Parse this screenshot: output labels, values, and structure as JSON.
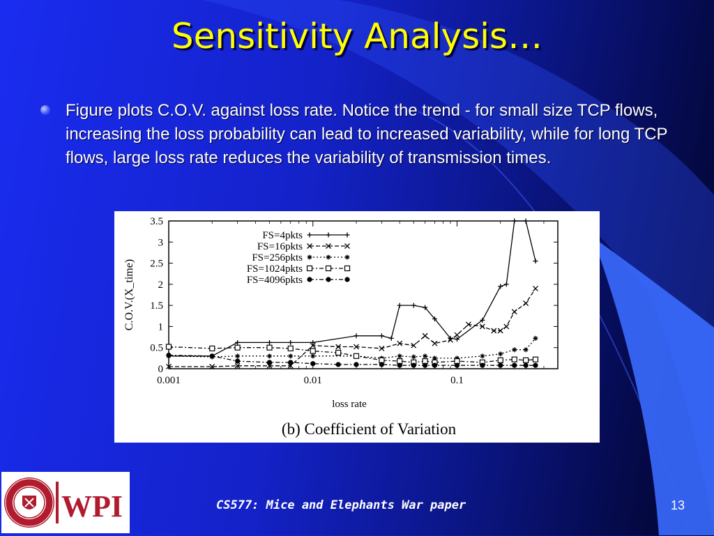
{
  "slide": {
    "title": "Sensitivity Analysis…",
    "bullet": "Figure plots C.O.V. against loss rate. Notice the trend - for small size TCP flows, increasing the loss probability can lead to increased variability, while for long TCP flows, large loss rate reduces the variability of transmission times.",
    "footer": "CS577:  Mice and Elephants War paper",
    "page_number": "13",
    "logo": {
      "seal_text": "WORCESTER POLYTECHNIC INSTITUTE",
      "seal_year": "1865",
      "wordmark": "WPI"
    }
  },
  "colors": {
    "title": "#ffff00",
    "wpi_red": "#b01c2e",
    "line": "#000000"
  },
  "chart_data": {
    "type": "line",
    "title": "",
    "caption": "(b) Coefficient of Variation",
    "xlabel": "loss rate",
    "ylabel": "C.O.V.(X_time)",
    "xscale": "log",
    "xlim": [
      0.001,
      0.5
    ],
    "ylim": [
      0,
      3.5
    ],
    "xticks": [
      0.001,
      0.01,
      0.1
    ],
    "xtick_labels": [
      "0.001",
      "0.01",
      "0.1"
    ],
    "yticks": [
      0,
      0.5,
      1,
      1.5,
      2,
      2.5,
      3,
      3.5
    ],
    "ytick_labels": [
      "0",
      "0.5",
      "1",
      "1.5",
      "2",
      "2.5",
      "3",
      "3.5"
    ],
    "legend_position": "top-center",
    "series": [
      {
        "name": "FS=4pkts",
        "marker": "plus",
        "dash": "solid",
        "points": [
          [
            0.001,
            0.3
          ],
          [
            0.002,
            0.3
          ],
          [
            0.003,
            0.62
          ],
          [
            0.005,
            0.62
          ],
          [
            0.007,
            0.62
          ],
          [
            0.01,
            0.62
          ],
          [
            0.02,
            0.78
          ],
          [
            0.03,
            0.78
          ],
          [
            0.035,
            0.72
          ],
          [
            0.04,
            1.5
          ],
          [
            0.05,
            1.5
          ],
          [
            0.06,
            1.45
          ],
          [
            0.07,
            1.18
          ],
          [
            0.09,
            0.72
          ],
          [
            0.1,
            0.7
          ],
          [
            0.15,
            1.15
          ],
          [
            0.2,
            1.95
          ],
          [
            0.22,
            2.0
          ],
          [
            0.25,
            3.5
          ],
          [
            0.3,
            3.5
          ],
          [
            0.35,
            2.55
          ]
        ]
      },
      {
        "name": "FS=16pkts",
        "marker": "cross",
        "dash": "dash",
        "points": [
          [
            0.001,
            0.05
          ],
          [
            0.002,
            0.05
          ],
          [
            0.003,
            0.07
          ],
          [
            0.005,
            0.07
          ],
          [
            0.007,
            0.07
          ],
          [
            0.01,
            0.55
          ],
          [
            0.015,
            0.52
          ],
          [
            0.02,
            0.52
          ],
          [
            0.03,
            0.48
          ],
          [
            0.04,
            0.6
          ],
          [
            0.05,
            0.55
          ],
          [
            0.06,
            0.78
          ],
          [
            0.07,
            0.6
          ],
          [
            0.09,
            0.68
          ],
          [
            0.1,
            0.8
          ],
          [
            0.12,
            1.05
          ],
          [
            0.15,
            1.0
          ],
          [
            0.18,
            0.9
          ],
          [
            0.2,
            0.9
          ],
          [
            0.22,
            1.0
          ],
          [
            0.25,
            1.35
          ],
          [
            0.3,
            1.55
          ],
          [
            0.35,
            1.9
          ]
        ]
      },
      {
        "name": "FS=256pkts",
        "marker": "star",
        "dash": "dot",
        "points": [
          [
            0.001,
            0.3
          ],
          [
            0.002,
            0.28
          ],
          [
            0.003,
            0.3
          ],
          [
            0.005,
            0.3
          ],
          [
            0.007,
            0.3
          ],
          [
            0.01,
            0.3
          ],
          [
            0.02,
            0.3
          ],
          [
            0.03,
            0.25
          ],
          [
            0.04,
            0.3
          ],
          [
            0.05,
            0.28
          ],
          [
            0.06,
            0.3
          ],
          [
            0.07,
            0.25
          ],
          [
            0.1,
            0.25
          ],
          [
            0.15,
            0.3
          ],
          [
            0.2,
            0.35
          ],
          [
            0.25,
            0.45
          ],
          [
            0.3,
            0.45
          ],
          [
            0.35,
            0.72
          ]
        ]
      },
      {
        "name": "FS=1024pkts",
        "marker": "square",
        "dash": "dashdot",
        "points": [
          [
            0.001,
            0.52
          ],
          [
            0.002,
            0.48
          ],
          [
            0.003,
            0.5
          ],
          [
            0.005,
            0.5
          ],
          [
            0.007,
            0.48
          ],
          [
            0.01,
            0.42
          ],
          [
            0.015,
            0.38
          ],
          [
            0.02,
            0.3
          ],
          [
            0.03,
            0.2
          ],
          [
            0.04,
            0.18
          ],
          [
            0.05,
            0.15
          ],
          [
            0.06,
            0.18
          ],
          [
            0.07,
            0.15
          ],
          [
            0.1,
            0.18
          ],
          [
            0.15,
            0.15
          ],
          [
            0.2,
            0.2
          ],
          [
            0.25,
            0.22
          ],
          [
            0.3,
            0.2
          ],
          [
            0.35,
            0.22
          ]
        ]
      },
      {
        "name": "FS=4096pkts",
        "marker": "circle",
        "dash": "dashdot",
        "points": [
          [
            0.001,
            0.32
          ],
          [
            0.002,
            0.3
          ],
          [
            0.003,
            0.18
          ],
          [
            0.005,
            0.15
          ],
          [
            0.007,
            0.15
          ],
          [
            0.01,
            0.12
          ],
          [
            0.015,
            0.1
          ],
          [
            0.02,
            0.1
          ],
          [
            0.03,
            0.1
          ],
          [
            0.04,
            0.08
          ],
          [
            0.05,
            0.08
          ],
          [
            0.06,
            0.08
          ],
          [
            0.07,
            0.08
          ],
          [
            0.1,
            0.08
          ],
          [
            0.15,
            0.08
          ],
          [
            0.2,
            0.08
          ],
          [
            0.25,
            0.08
          ],
          [
            0.3,
            0.08
          ],
          [
            0.35,
            0.08
          ]
        ]
      }
    ]
  }
}
